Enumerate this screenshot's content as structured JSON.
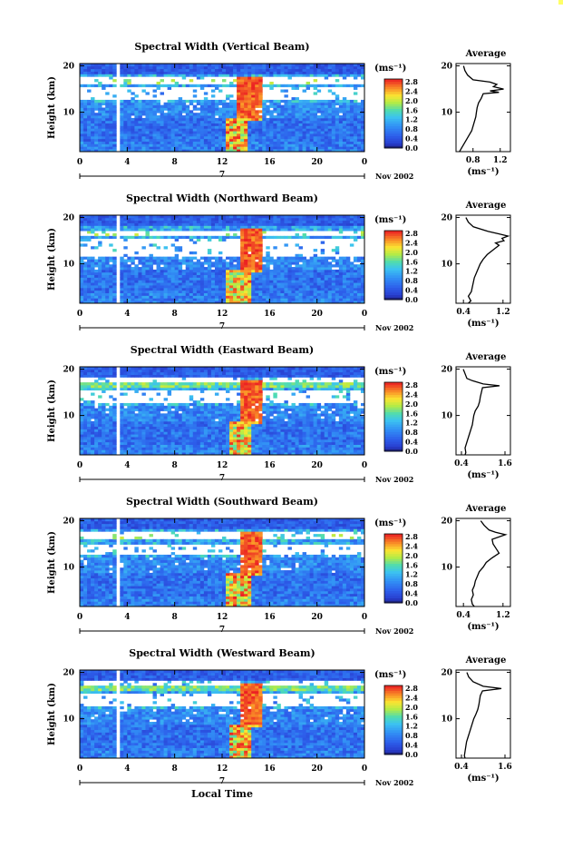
{
  "chart_data": [
    {
      "type": "heatmap",
      "title": "Spectral Width (Vertical Beam)",
      "ylabel": "Height (km)",
      "x_ticks": [
        "0",
        "4",
        "8",
        "12",
        "16",
        "20",
        "0"
      ],
      "y_ticks": [
        "20",
        "10"
      ],
      "date_marker": "7",
      "date_label": "Nov 2002",
      "xlim": [
        0,
        24
      ],
      "ylim": [
        1.5,
        20.5
      ],
      "colorbar": {
        "unit_label": "(ms⁻¹)",
        "ticks": [
          "2.8",
          "2.4",
          "2.0",
          "1.6",
          "1.2",
          "0.8",
          "0.4",
          "0.0"
        ],
        "range": [
          0,
          2.8
        ]
      },
      "gap_hours": [
        3.0,
        3.5
      ],
      "white_bands_km": [
        [
          16.0,
          17.6
        ],
        [
          12.4,
          15.3
        ]
      ],
      "tropopause_km": 16.5,
      "convection": {
        "hours": [
          13.2,
          15.4
        ],
        "base_hours": [
          12.2,
          14.2
        ]
      },
      "average": {
        "title": "Average",
        "x_ticks": [
          "0.8",
          "1.2"
        ],
        "y_ticks": [
          "20",
          "10"
        ],
        "xlabel": "(ms⁻¹)",
        "xlim": [
          0.55,
          1.35
        ],
        "profile": [
          [
            1.5,
            0.6
          ],
          [
            2,
            0.62
          ],
          [
            3,
            0.66
          ],
          [
            4,
            0.7
          ],
          [
            5,
            0.74
          ],
          [
            6,
            0.78
          ],
          [
            7,
            0.8
          ],
          [
            8,
            0.82
          ],
          [
            9,
            0.84
          ],
          [
            10,
            0.85
          ],
          [
            11,
            0.86
          ],
          [
            12,
            0.88
          ],
          [
            13,
            0.92
          ],
          [
            14,
            0.95
          ],
          [
            14.3,
            1.18
          ],
          [
            14.6,
            1.05
          ],
          [
            15,
            1.25
          ],
          [
            15.5,
            1.1
          ],
          [
            16,
            1.15
          ],
          [
            16.5,
            1.05
          ],
          [
            17,
            0.8
          ],
          [
            18,
            0.72
          ],
          [
            19,
            0.68
          ],
          [
            20,
            0.66
          ]
        ]
      }
    },
    {
      "type": "heatmap",
      "title": "Spectral Width (Northward Beam)",
      "ylabel": "Height (km)",
      "x_ticks": [
        "0",
        "4",
        "8",
        "12",
        "16",
        "20",
        "0"
      ],
      "y_ticks": [
        "20",
        "10"
      ],
      "date_marker": "7",
      "date_label": "Nov 2002",
      "xlim": [
        0,
        24
      ],
      "ylim": [
        1.5,
        20.5
      ],
      "colorbar": {
        "unit_label": "(ms⁻¹)",
        "ticks": [
          "2.8",
          "2.4",
          "2.0",
          "1.6",
          "1.2",
          "0.8",
          "0.4",
          "0.0"
        ],
        "range": [
          0,
          2.8
        ]
      },
      "gap_hours": [
        3.0,
        3.5
      ],
      "white_bands_km": [
        [
          16.0,
          17.4
        ],
        [
          11.6,
          15.4
        ]
      ],
      "tropopause_km": 16.5,
      "convection": {
        "hours": [
          13.4,
          15.4
        ],
        "base_hours": [
          12.2,
          14.4
        ]
      },
      "average": {
        "title": "Average",
        "x_ticks": [
          "0.4",
          "1.2"
        ],
        "y_ticks": [
          "20",
          "10"
        ],
        "xlabel": "(ms⁻¹)",
        "xlim": [
          0.25,
          1.35
        ],
        "profile": [
          [
            1.5,
            0.5
          ],
          [
            2,
            0.55
          ],
          [
            3,
            0.5
          ],
          [
            4,
            0.56
          ],
          [
            5,
            0.58
          ],
          [
            6,
            0.6
          ],
          [
            7,
            0.62
          ],
          [
            8,
            0.66
          ],
          [
            9,
            0.7
          ],
          [
            10,
            0.74
          ],
          [
            11,
            0.8
          ],
          [
            12,
            0.88
          ],
          [
            13,
            1.0
          ],
          [
            14,
            1.12
          ],
          [
            14.5,
            1.05
          ],
          [
            15,
            1.22
          ],
          [
            15.5,
            1.18
          ],
          [
            16,
            1.3
          ],
          [
            16.5,
            1.1
          ],
          [
            17,
            0.9
          ],
          [
            18,
            0.6
          ],
          [
            19,
            0.5
          ],
          [
            20,
            0.45
          ]
        ]
      }
    },
    {
      "type": "heatmap",
      "title": "Spectral Width (Eastward Beam)",
      "ylabel": "Height (km)",
      "x_ticks": [
        "0",
        "4",
        "8",
        "12",
        "16",
        "20",
        "0"
      ],
      "y_ticks": [
        "20",
        "10"
      ],
      "date_marker": "7",
      "date_label": "Nov 2002",
      "xlim": [
        0,
        24
      ],
      "ylim": [
        1.5,
        20.5
      ],
      "colorbar": {
        "unit_label": "(ms⁻¹)",
        "ticks": [
          "2.8",
          "2.4",
          "2.0",
          "1.6",
          "1.2",
          "0.8",
          "0.4",
          "0.0"
        ],
        "range": [
          0,
          2.8
        ]
      },
      "gap_hours": [
        3.0,
        3.5
      ],
      "white_bands_km": [
        [
          17.2,
          18.4
        ],
        [
          12.6,
          15.2
        ]
      ],
      "tropopause_km": 16.6,
      "convection": {
        "hours": [
          13.4,
          15.4
        ],
        "base_hours": [
          12.6,
          14.4
        ]
      },
      "average": {
        "title": "Average",
        "x_ticks": [
          "0.4",
          "1.6"
        ],
        "y_ticks": [
          "20",
          "10"
        ],
        "xlabel": "(ms⁻¹)",
        "xlim": [
          0.25,
          1.75
        ],
        "profile": [
          [
            1.5,
            0.5
          ],
          [
            2,
            0.52
          ],
          [
            3,
            0.5
          ],
          [
            4,
            0.54
          ],
          [
            5,
            0.58
          ],
          [
            6,
            0.62
          ],
          [
            7,
            0.66
          ],
          [
            8,
            0.7
          ],
          [
            9,
            0.72
          ],
          [
            10,
            0.74
          ],
          [
            11,
            0.78
          ],
          [
            12,
            0.86
          ],
          [
            13,
            0.9
          ],
          [
            14,
            0.92
          ],
          [
            15,
            0.95
          ],
          [
            16,
            0.98
          ],
          [
            16.4,
            1.45
          ],
          [
            16.8,
            1.0
          ],
          [
            17.5,
            0.7
          ],
          [
            18,
            0.55
          ],
          [
            19,
            0.5
          ],
          [
            20,
            0.45
          ]
        ]
      }
    },
    {
      "type": "heatmap",
      "title": "Spectral Width (Southward Beam)",
      "ylabel": "Height (km)",
      "x_ticks": [
        "0",
        "4",
        "8",
        "12",
        "16",
        "20",
        "0"
      ],
      "y_ticks": [
        "20",
        "10"
      ],
      "date_marker": "7",
      "date_label": "Nov 2002",
      "xlim": [
        0,
        24
      ],
      "ylim": [
        1.5,
        20.5
      ],
      "colorbar": {
        "unit_label": "(ms⁻¹)",
        "ticks": [
          "2.8",
          "2.4",
          "2.0",
          "1.6",
          "1.2",
          "0.8",
          "0.4",
          "0.0"
        ],
        "range": [
          0,
          2.8
        ]
      },
      "gap_hours": [
        3.0,
        3.5
      ],
      "white_bands_km": [
        [
          16.0,
          17.6
        ],
        [
          12.8,
          15.0
        ]
      ],
      "tropopause_km": 16.5,
      "convection": {
        "hours": [
          13.4,
          15.4
        ],
        "base_hours": [
          12.2,
          14.4
        ]
      },
      "average": {
        "title": "Average",
        "x_ticks": [
          "0.4",
          "1.2"
        ],
        "y_ticks": [
          "20",
          "10"
        ],
        "xlabel": "(ms⁻¹)",
        "xlim": [
          0.25,
          1.35
        ],
        "profile": [
          [
            1.5,
            0.62
          ],
          [
            2,
            0.58
          ],
          [
            3,
            0.56
          ],
          [
            4,
            0.6
          ],
          [
            5,
            0.58
          ],
          [
            6,
            0.62
          ],
          [
            7,
            0.64
          ],
          [
            8,
            0.68
          ],
          [
            9,
            0.72
          ],
          [
            10,
            0.8
          ],
          [
            11,
            0.86
          ],
          [
            12,
            0.98
          ],
          [
            13,
            1.12
          ],
          [
            14,
            1.06
          ],
          [
            15,
            1.0
          ],
          [
            16,
            0.98
          ],
          [
            17,
            1.25
          ],
          [
            17.5,
            1.05
          ],
          [
            18,
            0.92
          ],
          [
            19,
            0.82
          ],
          [
            20,
            0.75
          ]
        ]
      }
    },
    {
      "type": "heatmap",
      "title": "Spectral Width (Westward Beam)",
      "ylabel": "Height (km)",
      "x_ticks": [
        "0",
        "4",
        "8",
        "12",
        "16",
        "20",
        "0"
      ],
      "y_ticks": [
        "20",
        "10"
      ],
      "date_marker": "7",
      "date_label": "Nov 2002",
      "xlim": [
        0,
        24
      ],
      "ylim": [
        1.5,
        20.5
      ],
      "colorbar": {
        "unit_label": "(ms⁻¹)",
        "ticks": [
          "2.8",
          "2.4",
          "2.0",
          "1.6",
          "1.2",
          "0.8",
          "0.4",
          "0.0"
        ],
        "range": [
          0,
          2.8
        ]
      },
      "gap_hours": [
        3.0,
        3.5
      ],
      "white_bands_km": [
        [
          17.0,
          18.4
        ],
        [
          12.6,
          15.6
        ]
      ],
      "tropopause_km": 16.6,
      "convection": {
        "hours": [
          13.4,
          15.4
        ],
        "base_hours": [
          12.6,
          14.4
        ]
      },
      "average": {
        "title": "Average",
        "x_ticks": [
          "0.4",
          "1.6"
        ],
        "y_ticks": [
          "20",
          "10"
        ],
        "xlabel": "(ms⁻¹)",
        "xlim": [
          0.25,
          1.75
        ],
        "profile": [
          [
            1.5,
            0.5
          ],
          [
            2,
            0.48
          ],
          [
            3,
            0.5
          ],
          [
            4,
            0.52
          ],
          [
            5,
            0.54
          ],
          [
            6,
            0.58
          ],
          [
            7,
            0.62
          ],
          [
            8,
            0.66
          ],
          [
            9,
            0.7
          ],
          [
            10,
            0.74
          ],
          [
            11,
            0.8
          ],
          [
            12,
            0.85
          ],
          [
            13,
            0.88
          ],
          [
            14,
            0.9
          ],
          [
            15,
            0.92
          ],
          [
            16,
            0.98
          ],
          [
            16.5,
            1.5
          ],
          [
            17,
            1.0
          ],
          [
            18,
            0.72
          ],
          [
            19,
            0.6
          ],
          [
            20,
            0.55
          ]
        ]
      }
    }
  ],
  "xlabel": "Local Time"
}
